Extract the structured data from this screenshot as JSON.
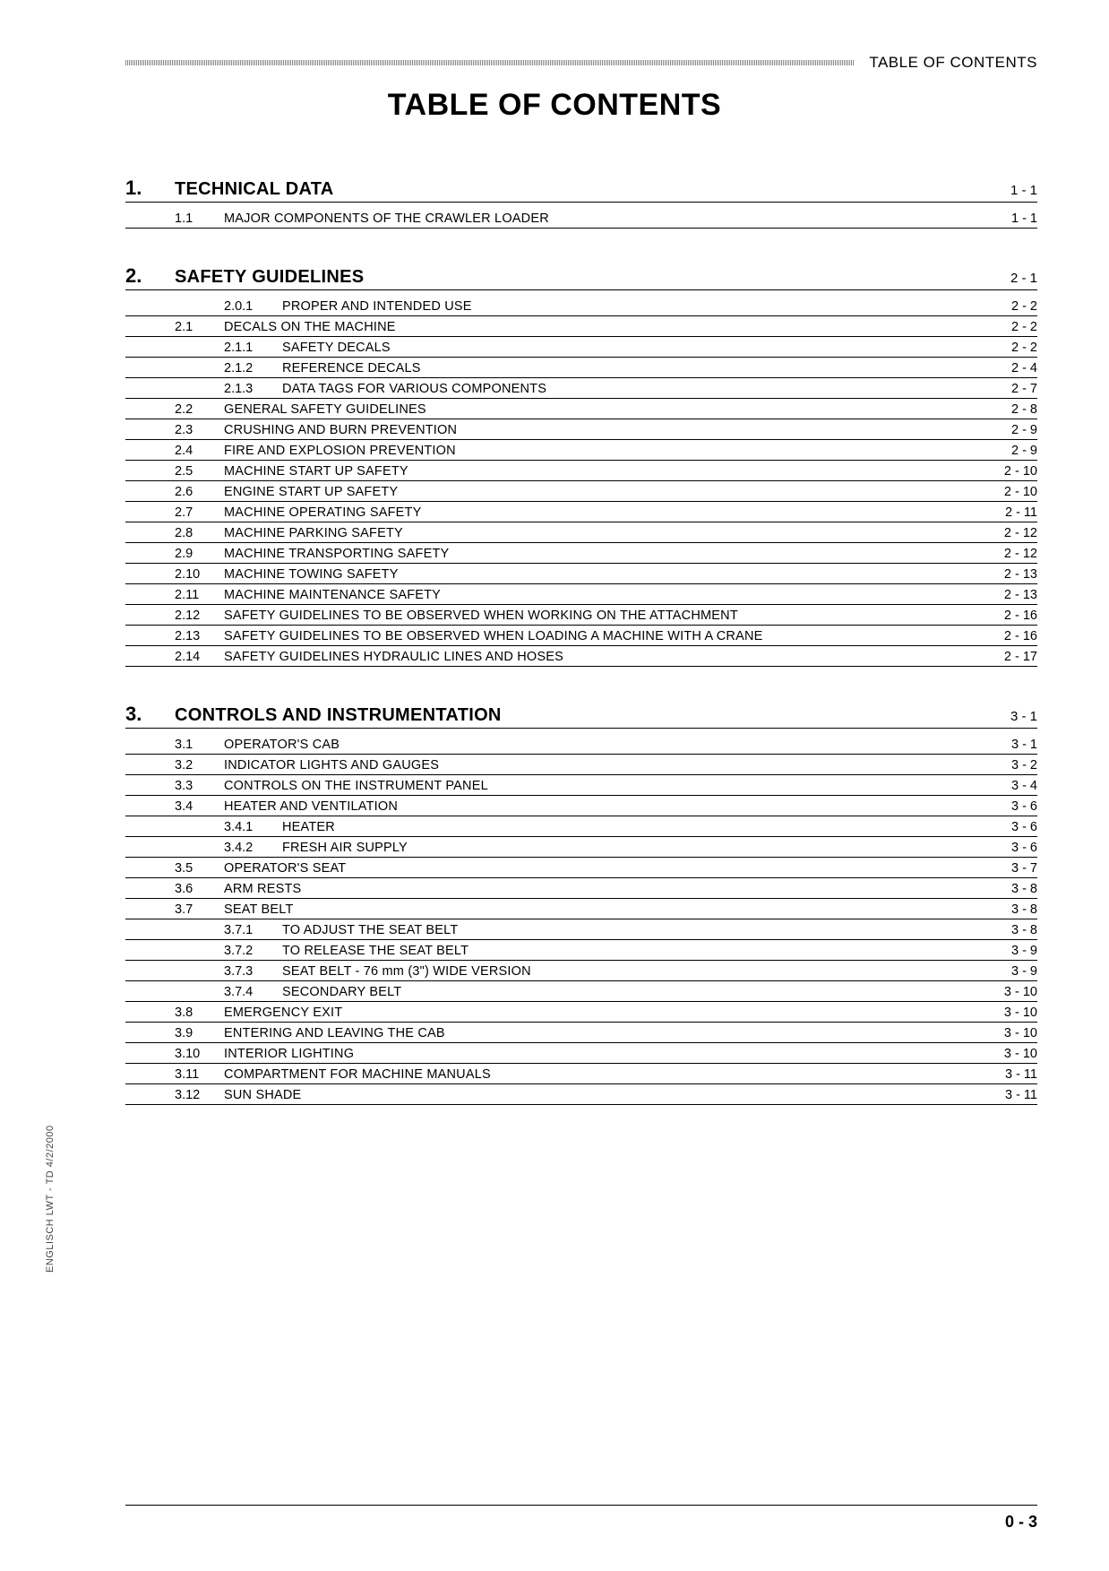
{
  "header_label": "TABLE OF CONTENTS",
  "doc_title": "TABLE OF CONTENTS",
  "side_text": "ENGLISCH  LWT - TD 4/2/2000",
  "footer_page": "0 - 3",
  "chapters": [
    {
      "num": "1.",
      "title": "TECHNICAL DATA",
      "page": "1 - 1",
      "entries": [
        {
          "level": 1,
          "num": "1.1",
          "title": "MAJOR COMPONENTS OF THE CRAWLER LOADER",
          "page": "1 - 1"
        }
      ]
    },
    {
      "num": "2.",
      "title": "SAFETY GUIDELINES",
      "page": "2 - 1",
      "entries": [
        {
          "level": 2,
          "num": "2.0.1",
          "title": "PROPER AND INTENDED USE",
          "page": "2 - 2"
        },
        {
          "level": 1,
          "num": "2.1",
          "title": "DECALS ON THE MACHINE",
          "page": "2 - 2"
        },
        {
          "level": 2,
          "num": "2.1.1",
          "title": "SAFETY DECALS",
          "page": "2 - 2"
        },
        {
          "level": 2,
          "num": "2.1.2",
          "title": "REFERENCE DECALS",
          "page": "2 - 4"
        },
        {
          "level": 2,
          "num": "2.1.3",
          "title": "DATA TAGS FOR VARIOUS COMPONENTS",
          "page": "2 - 7"
        },
        {
          "level": 1,
          "num": "2.2",
          "title": "GENERAL SAFETY GUIDELINES",
          "page": "2 - 8"
        },
        {
          "level": 1,
          "num": "2.3",
          "title": "CRUSHING AND BURN PREVENTION",
          "page": "2 - 9"
        },
        {
          "level": 1,
          "num": "2.4",
          "title": "FIRE AND EXPLOSION PREVENTION",
          "page": "2 - 9"
        },
        {
          "level": 1,
          "num": "2.5",
          "title": "MACHINE START UP SAFETY",
          "page": "2 - 10"
        },
        {
          "level": 1,
          "num": "2.6",
          "title": "ENGINE START UP SAFETY",
          "page": "2 - 10"
        },
        {
          "level": 1,
          "num": "2.7",
          "title": "MACHINE OPERATING SAFETY",
          "page": "2 - 11"
        },
        {
          "level": 1,
          "num": "2.8",
          "title": "MACHINE PARKING SAFETY",
          "page": "2 - 12"
        },
        {
          "level": 1,
          "num": "2.9",
          "title": "MACHINE TRANSPORTING SAFETY",
          "page": "2 - 12"
        },
        {
          "level": 1,
          "num": "2.10",
          "title": "MACHINE TOWING SAFETY",
          "page": "2 - 13"
        },
        {
          "level": 1,
          "num": "2.11",
          "title": "MACHINE MAINTENANCE SAFETY",
          "page": "2 - 13"
        },
        {
          "level": 1,
          "num": "2.12",
          "title": "SAFETY GUIDELINES TO BE OBSERVED WHEN WORKING ON THE ATTACHMENT",
          "page": "2 - 16"
        },
        {
          "level": 1,
          "num": "2.13",
          "title": "SAFETY GUIDELINES TO BE OBSERVED WHEN LOADING A MACHINE WITH A CRANE",
          "page": "2 - 16"
        },
        {
          "level": 1,
          "num": "2.14",
          "title": "SAFETY GUIDELINES HYDRAULIC LINES AND HOSES",
          "page": "2 - 17"
        }
      ]
    },
    {
      "num": "3.",
      "title": "CONTROLS AND INSTRUMENTATION",
      "page": "3 - 1",
      "entries": [
        {
          "level": 1,
          "num": "3.1",
          "title": "OPERATOR'S CAB",
          "page": "3 - 1"
        },
        {
          "level": 1,
          "num": "3.2",
          "title": "INDICATOR LIGHTS AND GAUGES",
          "page": "3 - 2"
        },
        {
          "level": 1,
          "num": "3.3",
          "title": "CONTROLS ON THE INSTRUMENT PANEL",
          "page": "3 - 4"
        },
        {
          "level": 1,
          "num": "3.4",
          "title": "HEATER AND VENTILATION",
          "page": "3 - 6"
        },
        {
          "level": 2,
          "num": "3.4.1",
          "title": "HEATER",
          "page": "3 - 6"
        },
        {
          "level": 2,
          "num": "3.4.2",
          "title": "FRESH AIR SUPPLY",
          "page": "3 - 6"
        },
        {
          "level": 1,
          "num": "3.5",
          "title": "OPERATOR'S SEAT",
          "page": "3 - 7"
        },
        {
          "level": 1,
          "num": "3.6",
          "title": "ARM RESTS",
          "page": "3 - 8"
        },
        {
          "level": 1,
          "num": "3.7",
          "title": "SEAT BELT",
          "page": "3 - 8"
        },
        {
          "level": 2,
          "num": "3.7.1",
          "title": "TO ADJUST THE SEAT BELT",
          "page": "3 - 8"
        },
        {
          "level": 2,
          "num": "3.7.2",
          "title": "TO RELEASE THE SEAT BELT",
          "page": "3 - 9"
        },
        {
          "level": 2,
          "num": "3.7.3",
          "title": "SEAT BELT - 76 mm (3\") WIDE VERSION",
          "page": "3 - 9"
        },
        {
          "level": 2,
          "num": "3.7.4",
          "title": "SECONDARY BELT",
          "page": "3 - 10"
        },
        {
          "level": 1,
          "num": "3.8",
          "title": "EMERGENCY EXIT",
          "page": "3 - 10"
        },
        {
          "level": 1,
          "num": "3.9",
          "title": "ENTERING AND LEAVING THE CAB",
          "page": "3 - 10"
        },
        {
          "level": 1,
          "num": "3.10",
          "title": "INTERIOR LIGHTING",
          "page": "3 - 10"
        },
        {
          "level": 1,
          "num": "3.11",
          "title": "COMPARTMENT FOR MACHINE MANUALS",
          "page": "3 - 11"
        },
        {
          "level": 1,
          "num": "3.12",
          "title": "SUN SHADE",
          "page": "3 - 11"
        }
      ]
    }
  ]
}
